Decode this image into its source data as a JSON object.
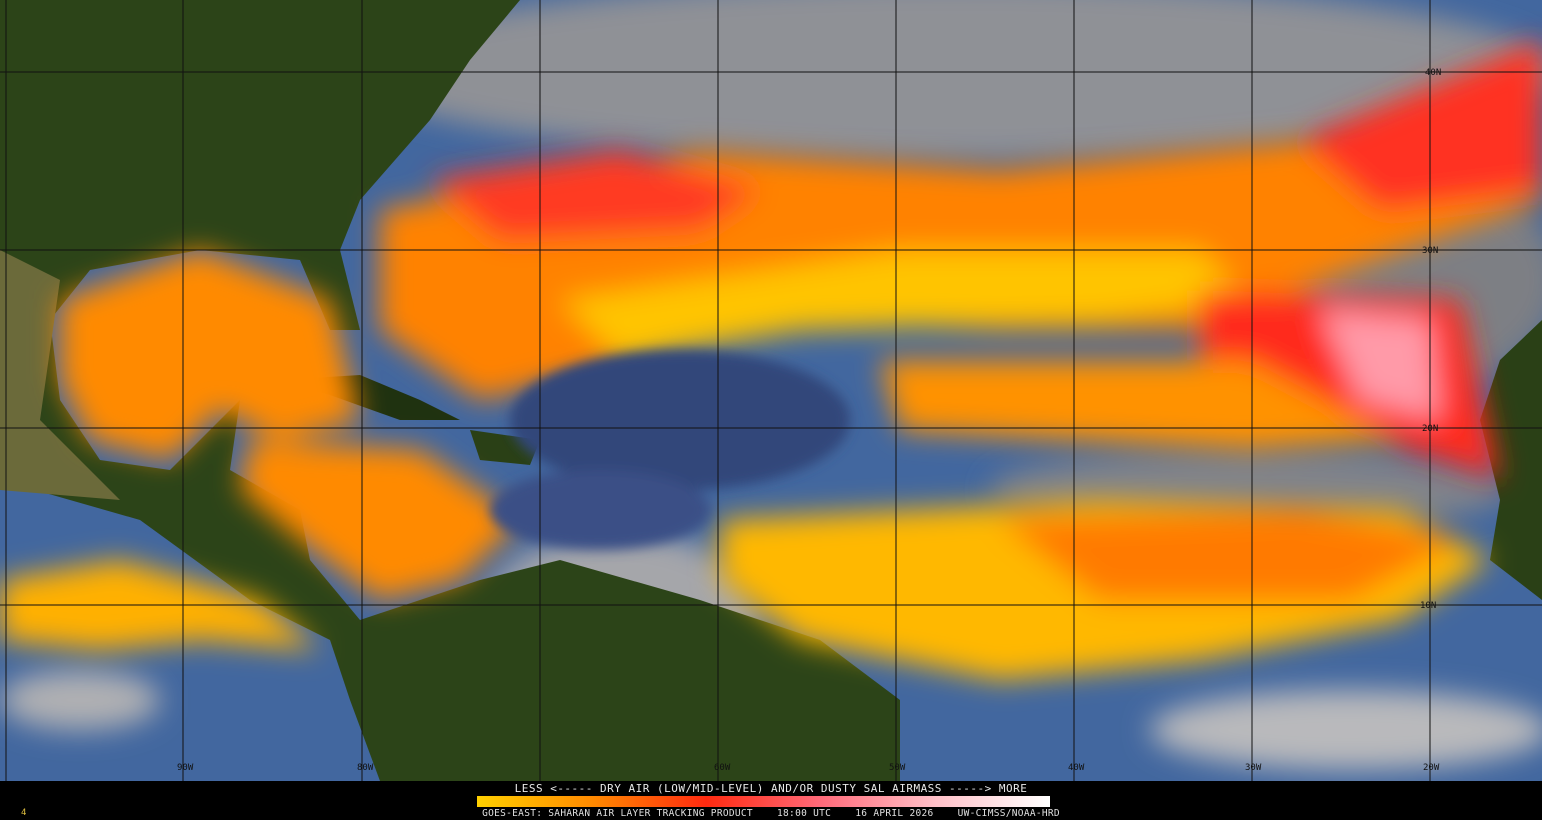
{
  "legend": {
    "title": "LESS <----- DRY AIR (LOW/MID-LEVEL) AND/OR DUSTY SAL AIRMASS -----> MORE",
    "colorbar_colors": [
      "#ffd000",
      "#ff8a00",
      "#ff2a10",
      "#ff6a7a",
      "#ffc0c8",
      "#ffffff"
    ]
  },
  "footer": {
    "frame_number": "4",
    "caption": "GOES-EAST: SAHARAN AIR LAYER TRACKING PRODUCT    18:00 UTC    16 APRIL 2026    UW-CIMSS/NOAA-HRD"
  },
  "map": {
    "latitude_labels": [
      "40N",
      "30N",
      "20N",
      "10N"
    ],
    "longitude_labels": [
      "90W",
      "80W",
      "60W",
      "50W",
      "40W",
      "30W",
      "20W"
    ],
    "colors": {
      "ocean": "#3e66a8",
      "land": "#2c4418",
      "clouds": "#9a9a9a",
      "dry_air_low": "#ffd000",
      "dry_air_mid": "#ff7a00",
      "dry_air_high": "#ff2020",
      "dusty_max": "#ffb8c4"
    }
  }
}
